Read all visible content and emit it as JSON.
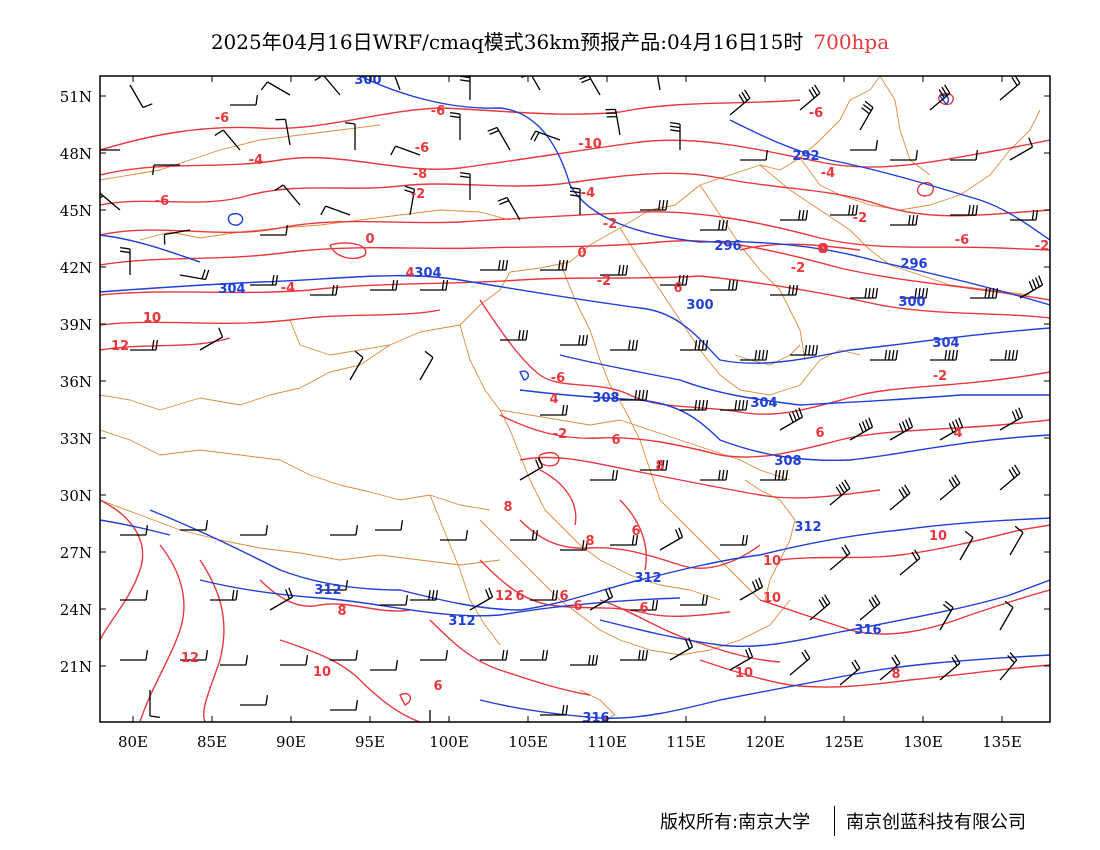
{
  "title": {
    "text": "2025年04月16日WRF/cmaq模式36km预报产品:04月16日15时",
    "level": "700hpa",
    "level_color": "#e8383d"
  },
  "axes": {
    "lat_ticks": [
      "51N",
      "48N",
      "45N",
      "42N",
      "39N",
      "36N",
      "33N",
      "30N",
      "27N",
      "24N",
      "21N"
    ],
    "lon_ticks": [
      "80E",
      "85E",
      "90E",
      "95E",
      "100E",
      "105E",
      "110E",
      "115E",
      "120E",
      "125E",
      "130E",
      "135E"
    ]
  },
  "colors": {
    "temperature_contour": "#e8383d",
    "geopotential_contour": "#1f3fd8",
    "boundary": "#e08a3a",
    "wind_barb": "#000000",
    "frame": "#000000"
  },
  "temperature_labels": [
    "-6",
    "-6",
    "-4",
    "-6",
    "-10",
    "-6",
    "-8",
    "-4",
    "-2",
    "-6",
    "-4",
    "-2",
    "-2",
    "0",
    "0",
    "-2",
    "-6",
    "-2",
    "0",
    "-6",
    "-2",
    "4",
    "-2",
    "-4",
    "6",
    "10",
    "12",
    "6",
    "8",
    "8",
    "6",
    "8",
    "10",
    "6",
    "6",
    "6",
    "6",
    "8",
    "12",
    "12",
    "10",
    "6",
    "10",
    "10",
    "10",
    "8",
    "6",
    "4",
    "4",
    "4",
    "-2",
    "0",
    "10"
  ],
  "geopotential_labels": [
    "300",
    "292",
    "296",
    "296",
    "300",
    "300",
    "304",
    "304",
    "304",
    "308",
    "304",
    "308",
    "312",
    "312",
    "312",
    "312",
    "316",
    "316"
  ],
  "copyright": {
    "left": "版权所有:南京大学",
    "right": "南京创蓝科技有限公司"
  }
}
